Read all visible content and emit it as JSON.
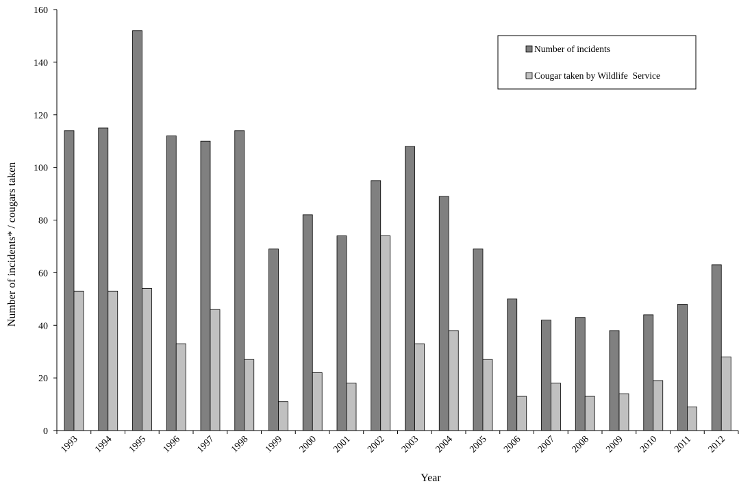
{
  "chart_data": {
    "type": "bar",
    "title": "",
    "xlabel": "Year",
    "ylabel": "Number of incidents* / cougars taken",
    "ylim": [
      0,
      160
    ],
    "yticks": [
      0,
      20,
      40,
      60,
      80,
      100,
      120,
      140,
      160
    ],
    "grid": false,
    "legend_position": "top-right",
    "categories": [
      "1993",
      "1994",
      "1995",
      "1996",
      "1997",
      "1998",
      "1999",
      "2000",
      "2001",
      "2002",
      "2003",
      "2004",
      "2005",
      "2006",
      "2007",
      "2008",
      "2009",
      "2010",
      "2011",
      "2012"
    ],
    "series": [
      {
        "name": "Number of incidents",
        "color": "#808080",
        "values": [
          114,
          115,
          152,
          112,
          110,
          114,
          69,
          82,
          74,
          95,
          108,
          89,
          69,
          50,
          42,
          43,
          38,
          44,
          48,
          63
        ]
      },
      {
        "name": "Cougar taken by Wildlife  Service",
        "color": "#c0c0c0",
        "values": [
          53,
          53,
          54,
          33,
          46,
          27,
          11,
          22,
          18,
          74,
          33,
          38,
          27,
          13,
          18,
          13,
          14,
          19,
          9,
          28
        ]
      }
    ]
  }
}
